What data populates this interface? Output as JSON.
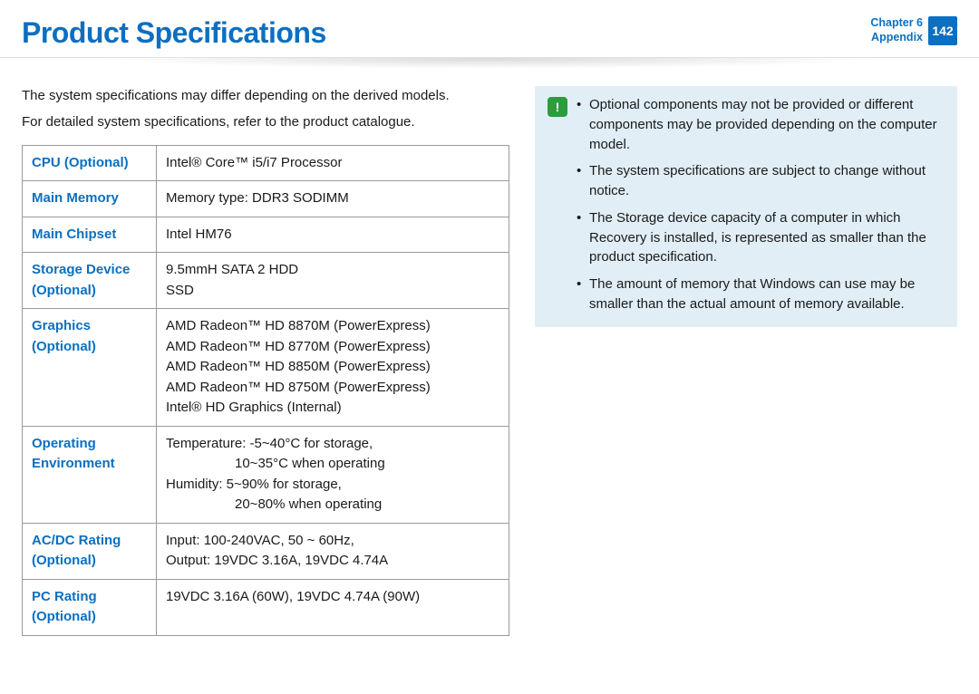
{
  "header": {
    "title": "Product Specifications",
    "chapter_line1": "Chapter 6",
    "chapter_line2": "Appendix",
    "page_number": "142"
  },
  "intro": {
    "p1": "The system specifications may differ depending on the derived models.",
    "p2": "For detailed system specifications, refer to the product catalogue."
  },
  "spec_table": {
    "rows": [
      {
        "label": "CPU (Optional)",
        "value": "Intel® Core™ i5/i7 Processor"
      },
      {
        "label": "Main Memory",
        "value": "Memory type: DDR3 SODIMM"
      },
      {
        "label": "Main Chipset",
        "value": "Intel HM76"
      },
      {
        "label": "Storage Device (Optional)",
        "value": "9.5mmH SATA 2 HDD\nSSD"
      },
      {
        "label": "Graphics (Optional)",
        "value": "AMD Radeon™ HD 8870M (PowerExpress)\nAMD Radeon™ HD 8770M (PowerExpress)\nAMD Radeon™ HD 8850M (PowerExpress)\nAMD Radeon™ HD 8750M (PowerExpress)\nIntel® HD Graphics (Internal)"
      },
      {
        "label": "Operating Environment",
        "env": {
          "l1": "Temperature: -5~40°C for storage,",
          "l2": "10~35°C when operating",
          "l3": "Humidity: 5~90% for storage,",
          "l4": "20~80% when operating"
        }
      },
      {
        "label": "AC/DC Rating (Optional)",
        "value": "Input: 100-240VAC, 50 ~ 60Hz,\nOutput: 19VDC 3.16A, 19VDC 4.74A"
      },
      {
        "label": "PC Rating (Optional)",
        "value": "19VDC 3.16A (60W), 19VDC 4.74A (90W)"
      }
    ]
  },
  "note": {
    "icon_glyph": "!",
    "items": [
      "Optional components may not be provided or different components may be provided depending on the computer model.",
      "The system specifications are subject to change without notice.",
      "The Storage device capacity of a computer in which Recovery is installed, is represented as smaller than the product specification.",
      "The amount of memory that Windows can use may be smaller than the actual amount of memory available."
    ]
  },
  "colors": {
    "accent": "#0d6fbf",
    "note_bg": "#e1eef6",
    "note_icon_bg": "#2e9b3d",
    "table_border": "#9a9a9a"
  }
}
